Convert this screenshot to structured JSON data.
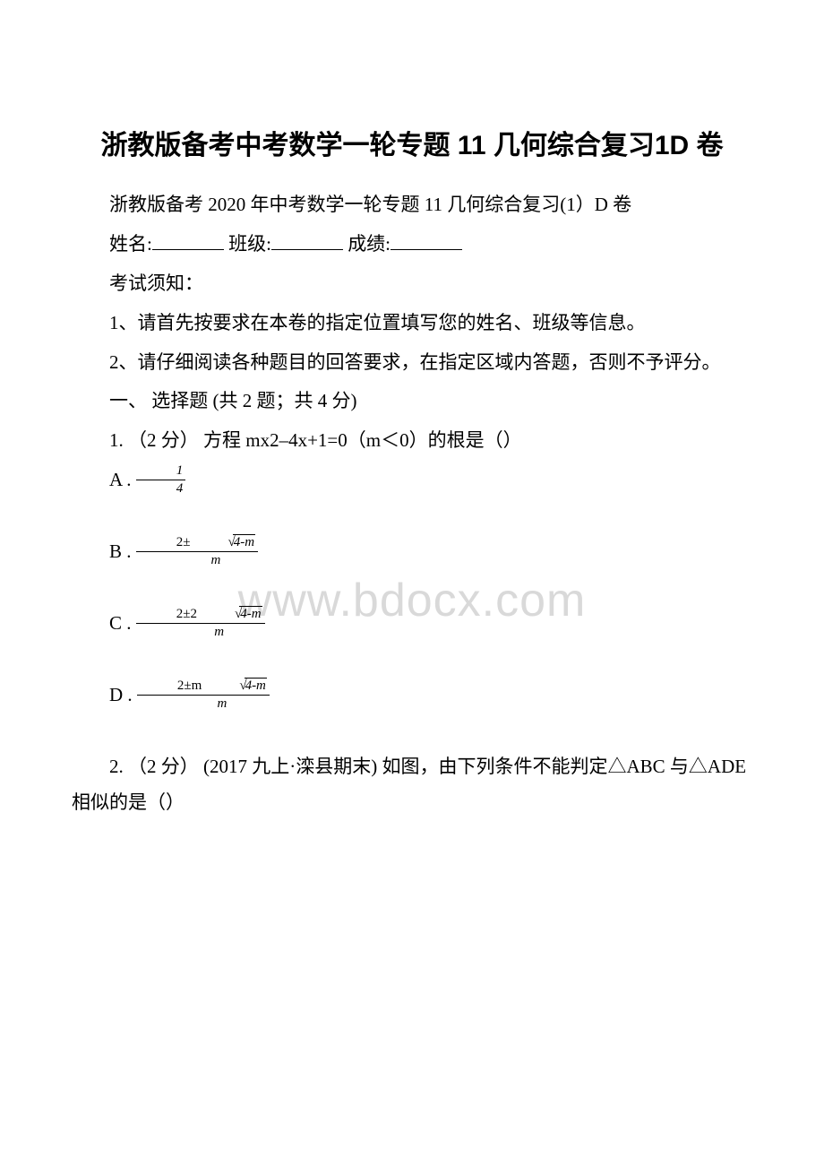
{
  "watermark": "www.bdocx.com",
  "title": "浙教版备考中考数学一轮专题 11 几何综合复习1D 卷",
  "subtitle": "浙教版备考 2020 年中考数学一轮专题 11 几何综合复习(1）D 卷",
  "form": {
    "name_label": "姓名:",
    "class_label": "班级:",
    "score_label": "成绩:"
  },
  "instructions_header": "考试须知：",
  "instruction_1": "1、请首先按要求在本卷的指定位置填写您的姓名、班级等信息。",
  "instruction_2": "2、请仔细阅读各种题目的回答要求，在指定区域内答题，否则不予评分。",
  "section_1": "一、 选择题 (共 2 题；共 4 分)",
  "q1": {
    "stem": "1. （2 分） 方程 mx2–4x+1=0（m＜0）的根是（）",
    "options": {
      "A": "A .",
      "B": "B .",
      "C": "C .",
      "D": "D ."
    },
    "fracs": {
      "A_num": "1",
      "A_den": "4",
      "B_num_pre": "2±",
      "B_num_rad": "4-m",
      "B_den": "m",
      "C_num_pre": "2±2",
      "C_num_rad": "4-m",
      "C_den": "m",
      "D_num_pre": "2±m",
      "D_num_rad": "4-m",
      "D_den": "m"
    }
  },
  "q2": {
    "stem": "2. （2 分） (2017 九上·滦县期末) 如图，由下列条件不能判定△ABC 与△ADE 相似的是（）"
  },
  "colors": {
    "text": "#000000",
    "watermark": "#d9d9d9",
    "background": "#ffffff"
  }
}
